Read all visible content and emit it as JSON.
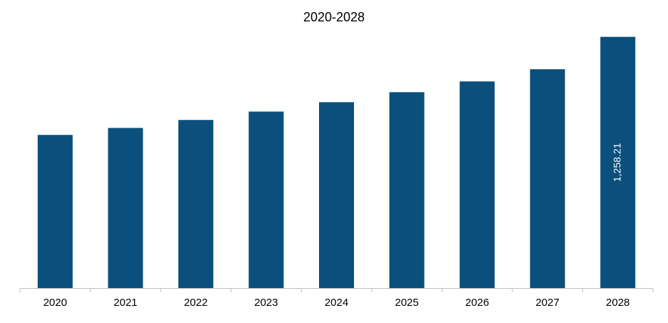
{
  "chart_data": {
    "type": "bar",
    "title": "2020-2028",
    "xlabel": "",
    "ylabel": "",
    "categories": [
      "2020",
      "2021",
      "2022",
      "2023",
      "2024",
      "2025",
      "2026",
      "2027",
      "2028"
    ],
    "values": [
      767,
      802,
      842,
      884,
      931,
      981,
      1035,
      1096,
      1258.21
    ],
    "ylim": [
      0,
      1300
    ],
    "grid": false,
    "bar_color": "#0b4f7c",
    "data_labels": [
      {
        "index": 8,
        "text": "1,258.21"
      }
    ]
  }
}
